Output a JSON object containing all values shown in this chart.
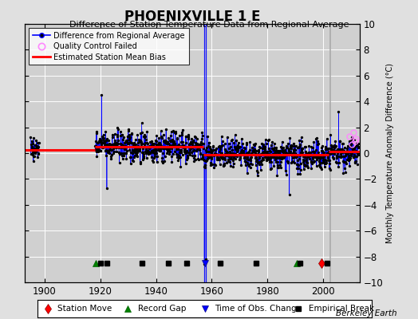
{
  "title": "PHOENIXVILLE 1 E",
  "subtitle": "Difference of Station Temperature Data from Regional Average",
  "ylabel_right": "Monthly Temperature Anomaly Difference (°C)",
  "xlim": [
    1893,
    2013
  ],
  "ylim": [
    -10,
    10
  ],
  "yticks": [
    -10,
    -8,
    -6,
    -4,
    -2,
    0,
    2,
    4,
    6,
    8,
    10
  ],
  "xticks": [
    1900,
    1920,
    1940,
    1960,
    1980,
    2000
  ],
  "background_color": "#e0e0e0",
  "plot_bg_color": "#d0d0d0",
  "grid_color": "#ffffff",
  "data_line_color": "#0000ff",
  "data_marker_color": "#000000",
  "bias_line_color": "#ff0000",
  "qc_marker_color": "#ff88ff",
  "watermark": "Berkeley Earth",
  "vertical_lines_blue": [
    1957.25,
    1957.75
  ],
  "vertical_line_gray": 2002.5,
  "station_moves": [
    1999.5
  ],
  "record_gaps": [
    1918.3,
    1990.5
  ],
  "time_of_obs_changes": [
    1957.5
  ],
  "empirical_breaks": [
    1920.0,
    1922.5,
    1935.0,
    1944.5,
    1951.0,
    1963.0,
    1976.0,
    1991.5,
    2001.5
  ],
  "bias_segments": [
    {
      "x_start": 1893,
      "x_end": 1918,
      "bias": 0.25
    },
    {
      "x_start": 1918,
      "x_end": 1957,
      "bias": 0.5
    },
    {
      "x_start": 1957,
      "x_end": 2002,
      "bias": -0.15
    },
    {
      "x_start": 2002,
      "x_end": 2013,
      "bias": 0.15
    }
  ],
  "qc_x": [
    2009.5,
    2010.2,
    2010.8,
    2011.3,
    2011.8
  ],
  "qc_y": [
    1.3,
    0.7,
    1.6,
    0.9,
    1.1
  ],
  "seed": 42
}
